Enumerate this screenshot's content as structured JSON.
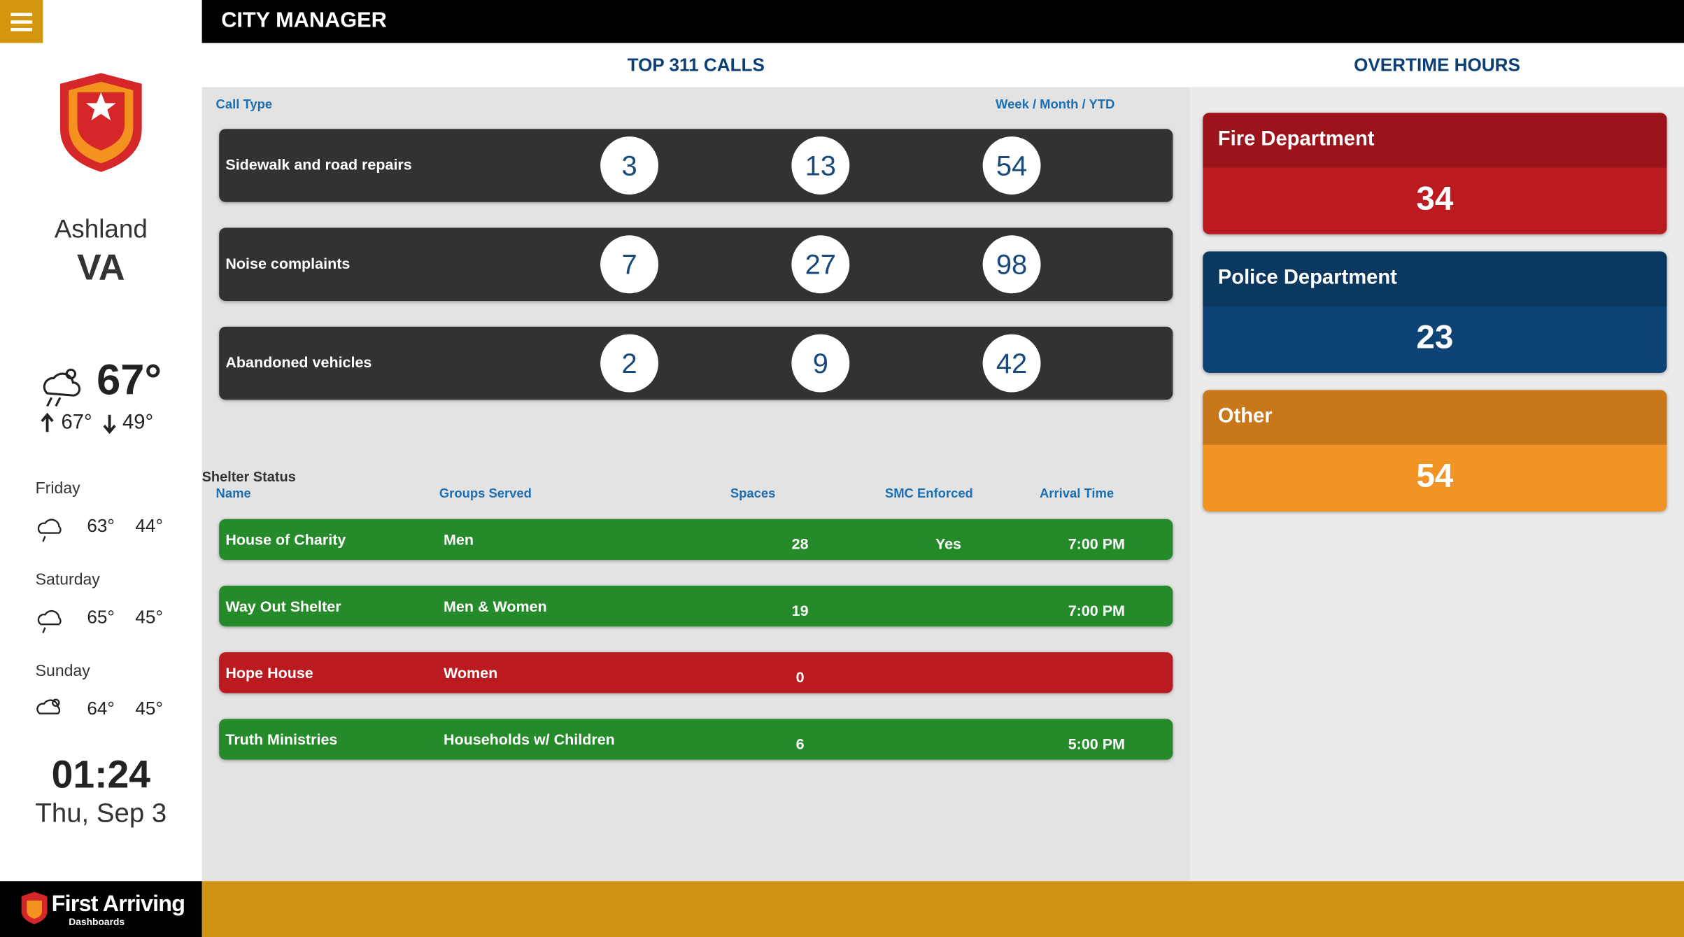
{
  "header": {
    "title": "CITY MANAGER"
  },
  "sidebar": {
    "city": "Ashland",
    "state": "VA",
    "temp": "67°",
    "high": "67°",
    "low": "49°",
    "forecast": [
      {
        "day": "Friday",
        "high": "63°",
        "low": "44°"
      },
      {
        "day": "Saturday",
        "high": "65°",
        "low": "45°"
      },
      {
        "day": "Sunday",
        "high": "64°",
        "low": "45°"
      }
    ],
    "time": "01:24",
    "date": "Thu, Sep 3",
    "brand": "First Arriving",
    "brand_sub": "Dashboards"
  },
  "calls": {
    "title": "TOP 311 CALLS",
    "col_type": "Call Type",
    "col_periods": "Week / Month / YTD",
    "rows": [
      {
        "name": "Sidewalk and road repairs",
        "week": 3,
        "month": 13,
        "ytd": 54
      },
      {
        "name": "Noise complaints",
        "week": 7,
        "month": 27,
        "ytd": 98
      },
      {
        "name": "Abandoned vehicles",
        "week": 2,
        "month": 9,
        "ytd": 42
      }
    ]
  },
  "shelter": {
    "title": "Shelter Status",
    "columns": [
      "Name",
      "Groups Served",
      "Spaces",
      "SMC Enforced",
      "Arrival Time"
    ],
    "rows": [
      {
        "name": "House of Charity",
        "groups": "Men",
        "spaces": 28,
        "smc": "Yes",
        "arrival": "7:00 PM",
        "color": "#258a2a"
      },
      {
        "name": "Way Out Shelter",
        "groups": "Men & Women",
        "spaces": 19,
        "arrival": "7:00 PM",
        "color": "#258a2a"
      },
      {
        "name": "Hope House",
        "groups": "Women",
        "spaces": 0,
        "color": "#bb1a20"
      },
      {
        "name": "Truth Ministries",
        "groups": "Households w/ Children",
        "spaces": 6,
        "arrival": "5:00 PM",
        "color": "#258a2a"
      }
    ]
  },
  "overtime": {
    "title": "OVERTIME HOURS",
    "items": [
      {
        "name": "Fire Department",
        "value": 34,
        "head": "#9b141b",
        "body": "#bb1a20"
      },
      {
        "name": "Police Department",
        "value": 23,
        "head": "#0b3860",
        "body": "#0c4374"
      },
      {
        "name": "Other",
        "value": 54,
        "head": "#c9771b",
        "body": "#f29325"
      }
    ]
  }
}
